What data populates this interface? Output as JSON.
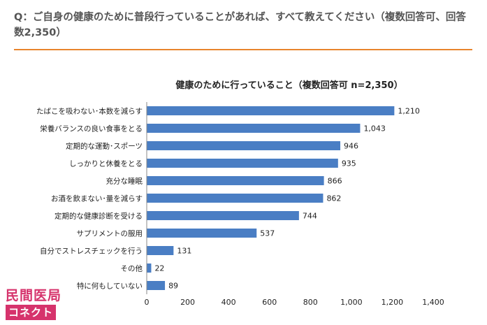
{
  "question": "Q：ご自身の健康のために普段行っていることがあれば、すべて教えてください（複数回答可、回答数2,350）",
  "logo": {
    "top": "民間医局",
    "bottom": "コネクト"
  },
  "colors": {
    "bar": "#4a7ec4",
    "accent": "#e8842c",
    "logo": "#d6336c"
  },
  "chart_data": {
    "type": "bar",
    "orientation": "horizontal",
    "title": "健康のために行っていること（複数回答可 n=2,350）",
    "categories": [
      "たばこを吸わない･本数を減らす",
      "栄養バランスの良い食事をとる",
      "定期的な運動･スポーツ",
      "しっかりと休養をとる",
      "充分な睡眠",
      "お酒を飲まない･量を減らす",
      "定期的な健康診断を受ける",
      "サプリメントの服用",
      "自分でストレスチェックを行う",
      "その他",
      "特に何もしていない"
    ],
    "values": [
      1210,
      1043,
      946,
      935,
      866,
      862,
      744,
      537,
      131,
      22,
      89
    ],
    "value_labels": [
      "1,210",
      "1,043",
      "946",
      "935",
      "866",
      "862",
      "744",
      "537",
      "131",
      "22",
      "89"
    ],
    "xticks": [
      "0",
      "200",
      "400",
      "600",
      "800",
      "1,000",
      "1,200",
      "1,400"
    ],
    "xlim": [
      0,
      1400
    ],
    "grid": false,
    "legend": "none"
  }
}
